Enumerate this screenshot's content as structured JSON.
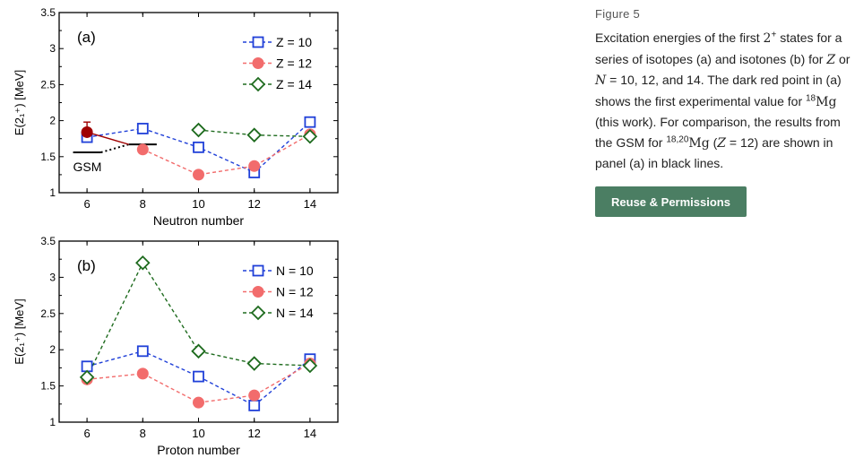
{
  "figure_label": "Figure 5",
  "caption": {
    "p1": "Excitation energies of the first ",
    "sym_2": "2",
    "sym_plus": "+",
    "p2": " states for a series of isotopes (a) and isotones (b) for ",
    "sym_Z": "Z",
    "p3": " or ",
    "sym_N": "N",
    "p4": " = 10, 12, and 14. The dark red point in (a) shows the first experimental value for ",
    "mass18": "18",
    "mg": "Mg",
    "p5": " (this work). For comparison, the results from the GSM for ",
    "mass1820": "18,20",
    "mg2": "Mg",
    "p6": " (",
    "sym_Z2": "Z",
    "p7": " = 12) are shown in panel (a) in black lines."
  },
  "reuse_button": "Reuse & Permissions",
  "colors": {
    "blue": "#2040d8",
    "red": "#f26c6c",
    "green": "#1e6b1e",
    "darkred": "#a00000",
    "black": "#000000",
    "button_bg": "#4b7e63"
  },
  "chart_data": [
    {
      "type": "line",
      "panel_label": "(a)",
      "xlabel": "Neutron number",
      "ylabel": "E(2₁⁺) [MeV]",
      "xlim": [
        5,
        15
      ],
      "ylim": [
        1,
        3.5
      ],
      "xticks": [
        "6",
        "8",
        "10",
        "12",
        "14"
      ],
      "yticks": [
        "1",
        "1.5",
        "2",
        "2.5",
        "3",
        "3.5"
      ],
      "legend_position": "top-right",
      "series": [
        {
          "name": "Z = 10",
          "color": "blue",
          "marker": "square",
          "x": [
            6,
            8,
            10,
            12,
            14
          ],
          "y": [
            1.77,
            1.89,
            1.63,
            1.28,
            1.98
          ]
        },
        {
          "name": "Z = 12",
          "color": "red",
          "marker": "circle",
          "x": [
            8,
            10,
            12,
            14
          ],
          "y": [
            1.6,
            1.25,
            1.37,
            1.81
          ]
        },
        {
          "name": "Z = 14",
          "color": "green",
          "marker": "diamond",
          "x": [
            10,
            12,
            14
          ],
          "y": [
            1.87,
            1.8,
            1.78
          ]
        }
      ],
      "experimental_point": {
        "x": 6,
        "y": 1.84,
        "err_up": 0.14,
        "err_down": 0.14
      },
      "gsm_label": "GSM",
      "gsm_levels": [
        {
          "x_from": 5.5,
          "x_to": 6.5,
          "y": 1.56
        },
        {
          "x_from": 7.5,
          "x_to": 8.5,
          "y": 1.67
        }
      ],
      "gsm_connector": {
        "from": [
          6.5,
          1.56
        ],
        "to": [
          7.5,
          1.67
        ]
      },
      "exp_connector": {
        "from": [
          6,
          1.84
        ],
        "to": [
          7.5,
          1.67
        ]
      }
    },
    {
      "type": "line",
      "panel_label": "(b)",
      "xlabel": "Proton number",
      "ylabel": "E(2₁⁺) [MeV]",
      "xlim": [
        5,
        15
      ],
      "ylim": [
        1,
        3.5
      ],
      "xticks": [
        "6",
        "8",
        "10",
        "12",
        "14"
      ],
      "yticks": [
        "1",
        "1.5",
        "2",
        "2.5",
        "3",
        "3.5"
      ],
      "legend_position": "top-right",
      "series": [
        {
          "name": "N = 10",
          "color": "blue",
          "marker": "square",
          "x": [
            6,
            8,
            10,
            12,
            14
          ],
          "y": [
            1.77,
            1.98,
            1.63,
            1.23,
            1.87
          ]
        },
        {
          "name": "N = 12",
          "color": "red",
          "marker": "circle",
          "x": [
            6,
            8,
            10,
            12,
            14
          ],
          "y": [
            1.59,
            1.67,
            1.27,
            1.37,
            1.81
          ]
        },
        {
          "name": "N = 14",
          "color": "green",
          "marker": "diamond",
          "x": [
            6,
            8,
            10,
            12,
            14
          ],
          "y": [
            1.62,
            3.2,
            1.98,
            1.81,
            1.78
          ]
        }
      ]
    }
  ]
}
